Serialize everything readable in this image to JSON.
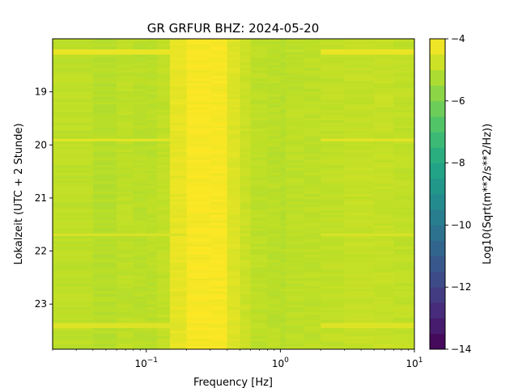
{
  "chart_data": {
    "type": "heatmap",
    "title": "GR GRFUR  BHZ: 2024-05-20",
    "xlabel": "Frequency [Hz]",
    "ylabel": "Lokalzeit (UTC + 2 Stunde)",
    "colorbar_label": "Log10(Sqrt(m**2/s**2/Hz))",
    "x_scale": "log",
    "xlim": [
      0.02,
      10
    ],
    "ylim": [
      23.85,
      18.0
    ],
    "y_inverted": true,
    "colormap": "viridis",
    "color_range": [
      -14,
      -4
    ],
    "x_ticks": [
      {
        "value": 0.1,
        "base": "10",
        "exp": "−1"
      },
      {
        "value": 1,
        "base": "10",
        "exp": "0"
      },
      {
        "value": 10,
        "base": "10",
        "exp": "1"
      }
    ],
    "y_ticks": [
      {
        "value": 19,
        "label": "19"
      },
      {
        "value": 20,
        "label": "20"
      },
      {
        "value": 21,
        "label": "21"
      },
      {
        "value": 22,
        "label": "22"
      },
      {
        "value": 23,
        "label": "23"
      }
    ],
    "colorbar_ticks": [
      {
        "value": -4,
        "label": "−4"
      },
      {
        "value": -6,
        "label": "−6"
      },
      {
        "value": -8,
        "label": "−8"
      },
      {
        "value": -10,
        "label": "−10"
      },
      {
        "value": -12,
        "label": "−12"
      },
      {
        "value": -14,
        "label": "−14"
      }
    ],
    "time_rows": 118,
    "frequency_bands_hz": [
      0.02,
      0.04,
      0.06,
      0.08,
      0.1,
      0.12,
      0.15,
      0.2,
      0.3,
      0.4,
      0.5,
      0.6,
      0.8,
      1.0,
      1.1,
      1.5,
      2,
      3,
      5,
      7,
      10
    ],
    "band_log10_amplitude": [
      -5.0,
      -5.1,
      -5.0,
      -5.05,
      -5.05,
      -4.95,
      -4.35,
      -4.1,
      -4.1,
      -4.5,
      -4.8,
      -5.0,
      -5.05,
      -5.1,
      -5.0,
      -5.0,
      -4.95,
      -4.9,
      -4.9,
      -4.95
    ],
    "highlight_rows": [
      {
        "time": 18.25,
        "log10_amplitude": -4.3
      },
      {
        "time": 19.9,
        "log10_amplitude": -4.4
      },
      {
        "time": 21.7,
        "log10_amplitude": -4.6
      },
      {
        "time": 23.4,
        "log10_amplitude": -4.5
      }
    ]
  }
}
